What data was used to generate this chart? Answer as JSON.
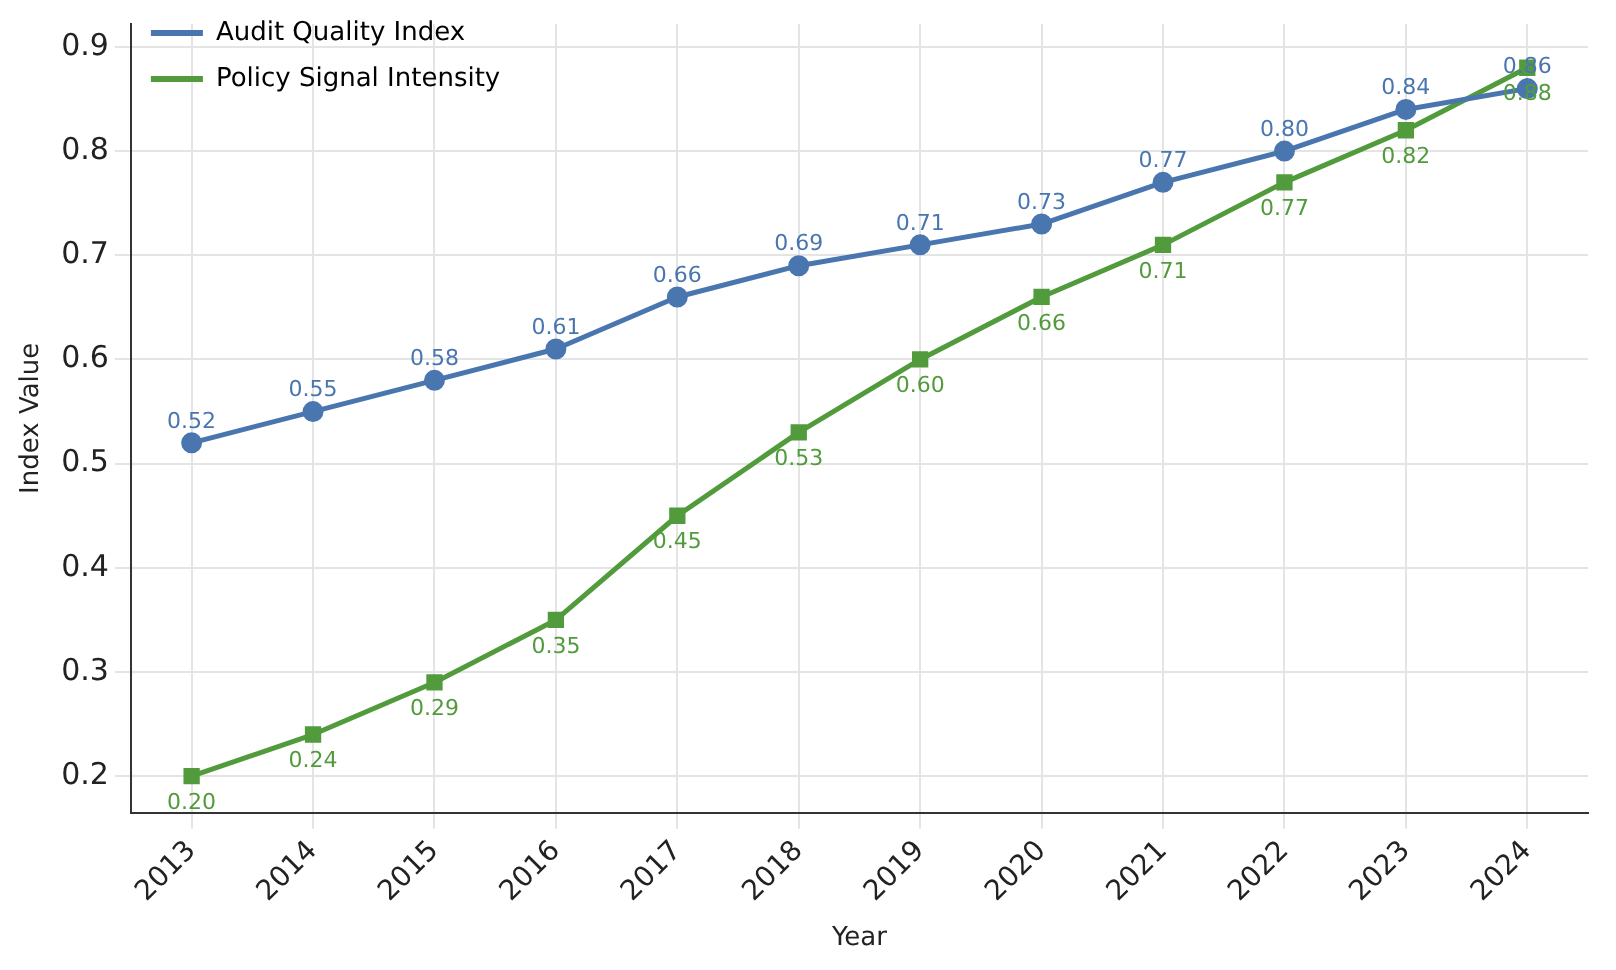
{
  "chart_data": {
    "type": "line",
    "xlabel": "Year",
    "ylabel": "Index Value",
    "categories": [
      "2013",
      "2014",
      "2015",
      "2016",
      "2017",
      "2018",
      "2019",
      "2020",
      "2021",
      "2022",
      "2023",
      "2024"
    ],
    "series": [
      {
        "name": "Audit Quality Index",
        "color": "#4a76b0",
        "marker": "circle",
        "values": [
          0.52,
          0.55,
          0.58,
          0.61,
          0.66,
          0.69,
          0.71,
          0.73,
          0.77,
          0.8,
          0.84,
          0.86
        ],
        "value_labels": [
          "0.52",
          "0.55",
          "0.58",
          "0.61",
          "0.66",
          "0.69",
          "0.71",
          "0.73",
          "0.77",
          "0.80",
          "0.84",
          "0.86"
        ]
      },
      {
        "name": "Policy Signal Intensity",
        "color": "#529b3c",
        "marker": "square",
        "values": [
          0.2,
          0.24,
          0.29,
          0.35,
          0.45,
          0.53,
          0.6,
          0.66,
          0.71,
          0.77,
          0.82,
          0.88
        ],
        "value_labels": [
          "0.20",
          "0.24",
          "0.29",
          "0.35",
          "0.45",
          "0.53",
          "0.60",
          "0.66",
          "0.71",
          "0.77",
          "0.82",
          "0.88"
        ]
      }
    ],
    "ylim": [
      0.165,
      0.922
    ],
    "yticks": [
      0.2,
      0.3,
      0.4,
      0.5,
      0.6,
      0.7,
      0.8,
      0.9
    ],
    "grid": true,
    "legend": "top left",
    "line_style": "solid"
  }
}
